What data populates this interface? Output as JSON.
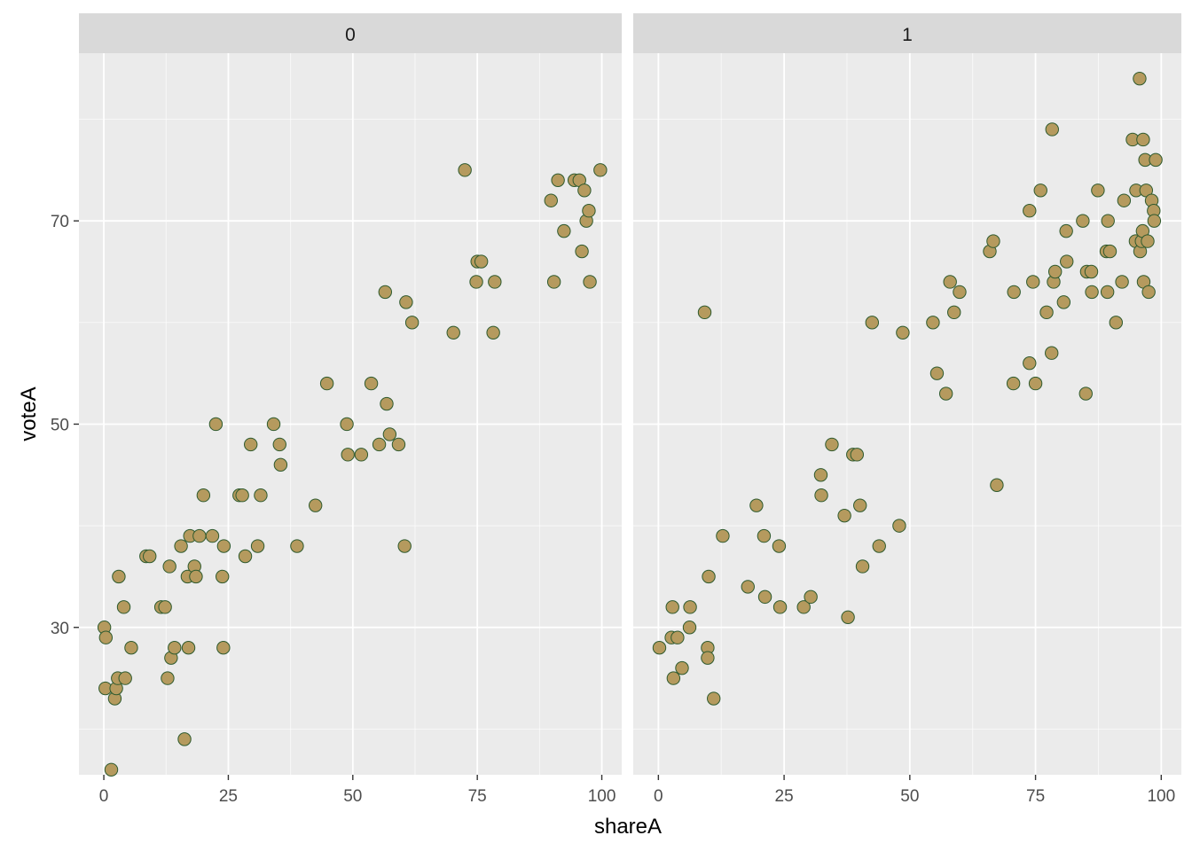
{
  "chart_data": {
    "type": "scatter",
    "facet_variable": "",
    "xlabel": "shareA",
    "ylabel": "voteA",
    "xlim": [
      -5,
      104
    ],
    "ylim": [
      15.5,
      86.5
    ],
    "x_ticks": [
      0,
      25,
      50,
      75,
      100
    ],
    "y_ticks": [
      30,
      50,
      70
    ],
    "y_minor_ticks": [
      20,
      40,
      60,
      80
    ],
    "x_minor_ticks": [
      12.5,
      37.5,
      62.5,
      87.5
    ],
    "grid": true,
    "legend": "none",
    "colors": {
      "panel_bg": "#ebebeb",
      "strip_bg": "#d9d9d9",
      "grid": "#ffffff",
      "point_fill": "#b59a5e",
      "point_stroke": "#2e5a2e",
      "axis_text": "#4d4d4d"
    },
    "panels": [
      {
        "label": "0",
        "points": [
          [
            0.1,
            30
          ],
          [
            0.3,
            24
          ],
          [
            0.4,
            29
          ],
          [
            1.5,
            16
          ],
          [
            2.2,
            23
          ],
          [
            2.5,
            24
          ],
          [
            2.8,
            25
          ],
          [
            3,
            35
          ],
          [
            4,
            32
          ],
          [
            4.3,
            25
          ],
          [
            5.5,
            28
          ],
          [
            8.5,
            37
          ],
          [
            9.2,
            37
          ],
          [
            11.5,
            32
          ],
          [
            12.3,
            32
          ],
          [
            12.8,
            25
          ],
          [
            13.2,
            36
          ],
          [
            13.5,
            27
          ],
          [
            14.2,
            28
          ],
          [
            15.5,
            38
          ],
          [
            16.2,
            19
          ],
          [
            16.8,
            35
          ],
          [
            17,
            28
          ],
          [
            17.3,
            39
          ],
          [
            18.2,
            36
          ],
          [
            18.5,
            35
          ],
          [
            19.2,
            39
          ],
          [
            20,
            43
          ],
          [
            21.8,
            39
          ],
          [
            22.5,
            50
          ],
          [
            23.8,
            35
          ],
          [
            24,
            28
          ],
          [
            24.1,
            38
          ],
          [
            27.2,
            43
          ],
          [
            27.8,
            43
          ],
          [
            28.4,
            37
          ],
          [
            29.5,
            48
          ],
          [
            30.9,
            38
          ],
          [
            31.5,
            43
          ],
          [
            34.1,
            50
          ],
          [
            35.3,
            48
          ],
          [
            35.5,
            46
          ],
          [
            38.8,
            38
          ],
          [
            42.5,
            42
          ],
          [
            44.8,
            54
          ],
          [
            48.8,
            50
          ],
          [
            49,
            47
          ],
          [
            51.7,
            47
          ],
          [
            53.7,
            54
          ],
          [
            55.3,
            48
          ],
          [
            56.5,
            63
          ],
          [
            56.8,
            52
          ],
          [
            57.4,
            49
          ],
          [
            59.2,
            48
          ],
          [
            60.4,
            38
          ],
          [
            60.7,
            62
          ],
          [
            61.9,
            60
          ],
          [
            70.2,
            59
          ],
          [
            72.5,
            75
          ],
          [
            74.8,
            64
          ],
          [
            75,
            66
          ],
          [
            75.8,
            66
          ],
          [
            78.2,
            59
          ],
          [
            78.5,
            64
          ],
          [
            89.8,
            72
          ],
          [
            90.4,
            64
          ],
          [
            91.2,
            74
          ],
          [
            92.4,
            69
          ],
          [
            94.5,
            74
          ],
          [
            95.5,
            74
          ],
          [
            96.5,
            73
          ],
          [
            96.9,
            70
          ],
          [
            97.4,
            71
          ],
          [
            97.6,
            64
          ],
          [
            99.7,
            75
          ],
          [
            96,
            67
          ]
        ]
      },
      {
        "label": "1",
        "points": [
          [
            0.2,
            28
          ],
          [
            2.6,
            29
          ],
          [
            2.8,
            32
          ],
          [
            3,
            25
          ],
          [
            3.8,
            29
          ],
          [
            4.7,
            26
          ],
          [
            6.2,
            30
          ],
          [
            6.3,
            32
          ],
          [
            9.2,
            61
          ],
          [
            9.8,
            28
          ],
          [
            9.8,
            27
          ],
          [
            10,
            35
          ],
          [
            11,
            23
          ],
          [
            12.8,
            39
          ],
          [
            17.8,
            34
          ],
          [
            19.5,
            42
          ],
          [
            21,
            39
          ],
          [
            21.2,
            33
          ],
          [
            24,
            38
          ],
          [
            24.2,
            32
          ],
          [
            28.9,
            32
          ],
          [
            30.3,
            33
          ],
          [
            32.3,
            45
          ],
          [
            32.4,
            43
          ],
          [
            34.5,
            48
          ],
          [
            37,
            41
          ],
          [
            37.7,
            31
          ],
          [
            38.7,
            47
          ],
          [
            39.5,
            47
          ],
          [
            40.1,
            42
          ],
          [
            40.6,
            36
          ],
          [
            42.5,
            60
          ],
          [
            43.9,
            38
          ],
          [
            47.9,
            40
          ],
          [
            48.6,
            59
          ],
          [
            54.6,
            60
          ],
          [
            55.4,
            55
          ],
          [
            57.2,
            53
          ],
          [
            58,
            64
          ],
          [
            58.8,
            61
          ],
          [
            59.9,
            63
          ],
          [
            65.9,
            67
          ],
          [
            66.6,
            68
          ],
          [
            67.3,
            44
          ],
          [
            70.6,
            54
          ],
          [
            70.7,
            63
          ],
          [
            73.8,
            56
          ],
          [
            73.8,
            71
          ],
          [
            74.5,
            64
          ],
          [
            75,
            54
          ],
          [
            76,
            73
          ],
          [
            77.2,
            61
          ],
          [
            78.3,
            79
          ],
          [
            78.2,
            57
          ],
          [
            78.6,
            64
          ],
          [
            78.9,
            65
          ],
          [
            80.6,
            62
          ],
          [
            81.1,
            69
          ],
          [
            81.2,
            66
          ],
          [
            84.4,
            70
          ],
          [
            85,
            53
          ],
          [
            85.2,
            65
          ],
          [
            86.1,
            65
          ],
          [
            86.2,
            63
          ],
          [
            87.4,
            73
          ],
          [
            89.1,
            67
          ],
          [
            89.3,
            63
          ],
          [
            89.4,
            70
          ],
          [
            89.8,
            67
          ],
          [
            91,
            60
          ],
          [
            92.2,
            64
          ],
          [
            92.6,
            72
          ],
          [
            94.3,
            78
          ],
          [
            94.9,
            68
          ],
          [
            95,
            73
          ],
          [
            95.7,
            84
          ],
          [
            95.8,
            67
          ],
          [
            96.1,
            68
          ],
          [
            96.3,
            69
          ],
          [
            96.4,
            78
          ],
          [
            96.5,
            64
          ],
          [
            96.8,
            76
          ],
          [
            97,
            73
          ],
          [
            97.3,
            68
          ],
          [
            97.5,
            63
          ],
          [
            98.1,
            72
          ],
          [
            98.5,
            71
          ],
          [
            98.6,
            70
          ],
          [
            98.9,
            76
          ]
        ]
      }
    ]
  }
}
